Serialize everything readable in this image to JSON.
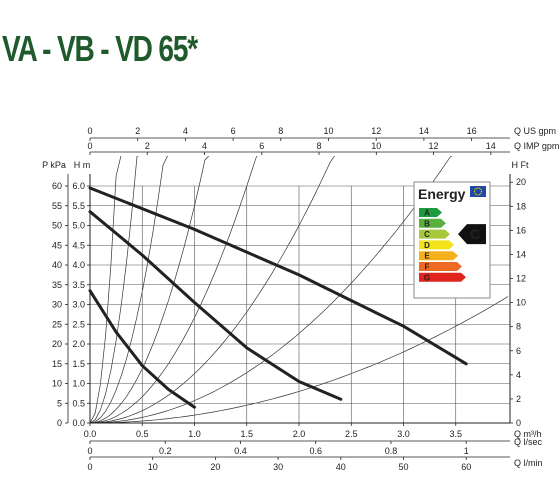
{
  "title": "VA - VB - VD 65*",
  "chart_data": {
    "type": "line",
    "title": "VA - VB - VD 65*",
    "ylabel": "H m",
    "xlim": [
      0,
      4.0
    ],
    "ylim": [
      0,
      6.0
    ],
    "grid": true,
    "axes": {
      "top1": {
        "label": "Q US gpm",
        "ticks": [
          0,
          2,
          4,
          6,
          8,
          10,
          12,
          14,
          16
        ],
        "max": 17.61
      },
      "top2": {
        "label": "Q IMP gpm",
        "ticks": [
          0,
          2,
          4,
          6,
          8,
          10,
          12,
          14
        ],
        "max": 14.67
      },
      "left_kpa": {
        "label": "P kPa",
        "ticks": [
          0,
          5,
          10,
          15,
          20,
          25,
          30,
          35,
          40,
          45,
          50,
          55,
          60
        ]
      },
      "left_m": {
        "label": "H m",
        "ticks": [
          0,
          0.5,
          1.0,
          1.5,
          2.0,
          2.5,
          3.0,
          3.5,
          4.0,
          4.5,
          5.0,
          5.5,
          6.0
        ]
      },
      "right_ft": {
        "label": "H Ft",
        "ticks": [
          0,
          2,
          4,
          6,
          8,
          10,
          12,
          14,
          16,
          18,
          20
        ]
      },
      "bottom_m3h": {
        "label": "Q m³/h",
        "ticks": [
          0,
          0.5,
          1.0,
          1.5,
          2.0,
          2.5,
          3.0,
          3.5
        ]
      },
      "bottom_lsec": {
        "label": "Q l/sec",
        "ticks": [
          0,
          0.2,
          0.4,
          0.6,
          0.8,
          1.0
        ]
      },
      "bottom_lmin": {
        "label": "Q l/min",
        "ticks": [
          0,
          10,
          20,
          30,
          40,
          50,
          60
        ]
      }
    },
    "series": [
      {
        "x": [
          0,
          0.25,
          0.5,
          0.75,
          1.0
        ],
        "y": [
          3.35,
          2.3,
          1.45,
          0.85,
          0.4
        ]
      },
      {
        "x": [
          0,
          0.5,
          1.0,
          1.5,
          2.0,
          2.4
        ],
        "y": [
          5.35,
          4.25,
          3.05,
          1.9,
          1.05,
          0.6
        ]
      },
      {
        "x": [
          0,
          1.0,
          2.0,
          3.0,
          3.6
        ],
        "y": [
          5.95,
          4.9,
          3.75,
          2.45,
          1.5
        ]
      }
    ],
    "system_curves_k": [
      60,
      20,
      8,
      3.3,
      1.6,
      0.75,
      0.34,
      0.12
    ],
    "energy_label": {
      "header": "Energy",
      "classes": [
        "A",
        "B",
        "C",
        "D",
        "E",
        "F",
        "G"
      ],
      "class_colors": [
        "#1e9a3f",
        "#58b03f",
        "#a6c83a",
        "#f2e41a",
        "#f4b11b",
        "#ec6a23",
        "#e1231d"
      ],
      "rating": "C"
    }
  }
}
